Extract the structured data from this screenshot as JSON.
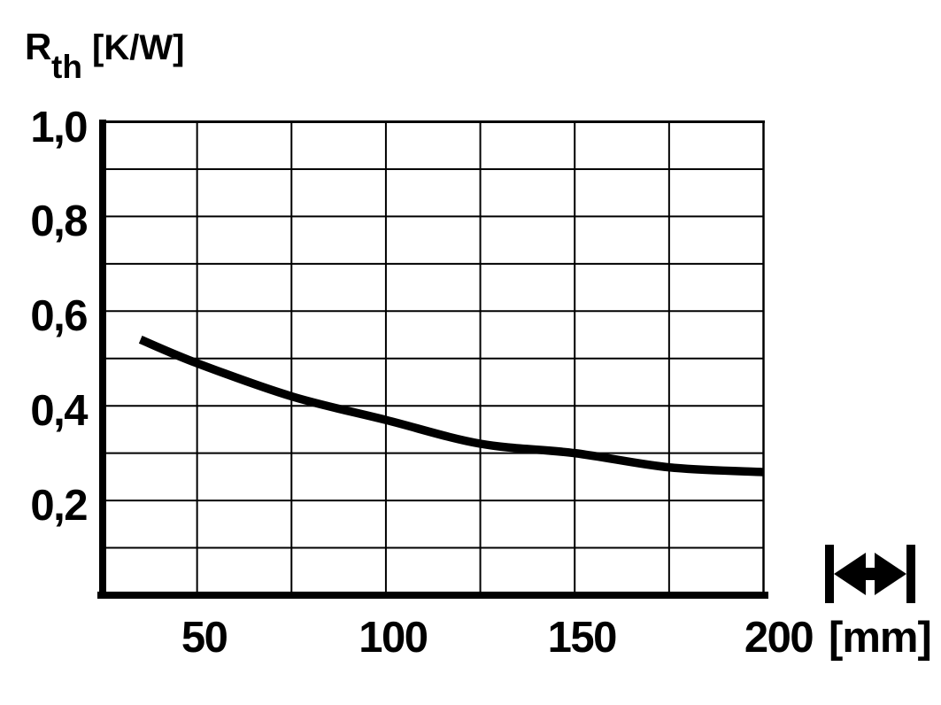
{
  "chart_data": {
    "type": "line",
    "ylabel": {
      "symbol": "R",
      "subscript": "th",
      "unit": "[K/W]",
      "text": "Rth [K/W]"
    },
    "xlabel_unit": "[mm]",
    "x_axis": {
      "tick_labels": [
        "50",
        "100",
        "150",
        "200"
      ],
      "tick_values": [
        50,
        100,
        150,
        200
      ],
      "range": [
        25,
        200
      ],
      "grid_step": 25
    },
    "y_axis": {
      "tick_labels": [
        "1,0",
        "0,8",
        "0,6",
        "0,4",
        "0,2"
      ],
      "tick_values": [
        1.0,
        0.8,
        0.6,
        0.4,
        0.2
      ],
      "range": [
        0,
        1.0
      ],
      "grid_step": 0.1
    },
    "series": [
      {
        "name": "thermal-resistance-vs-width",
        "x": [
          35,
          50,
          75,
          100,
          125,
          150,
          175,
          200
        ],
        "y": [
          0.54,
          0.49,
          0.42,
          0.37,
          0.32,
          0.3,
          0.27,
          0.26
        ]
      }
    ],
    "grid": "on",
    "legend": "none",
    "colors": {
      "line": "#000000",
      "grid": "#000000",
      "axis": "#000000",
      "text": "#000000",
      "background": "#ffffff"
    }
  },
  "icons": {
    "bottom_right": "width-dimension-icon"
  }
}
